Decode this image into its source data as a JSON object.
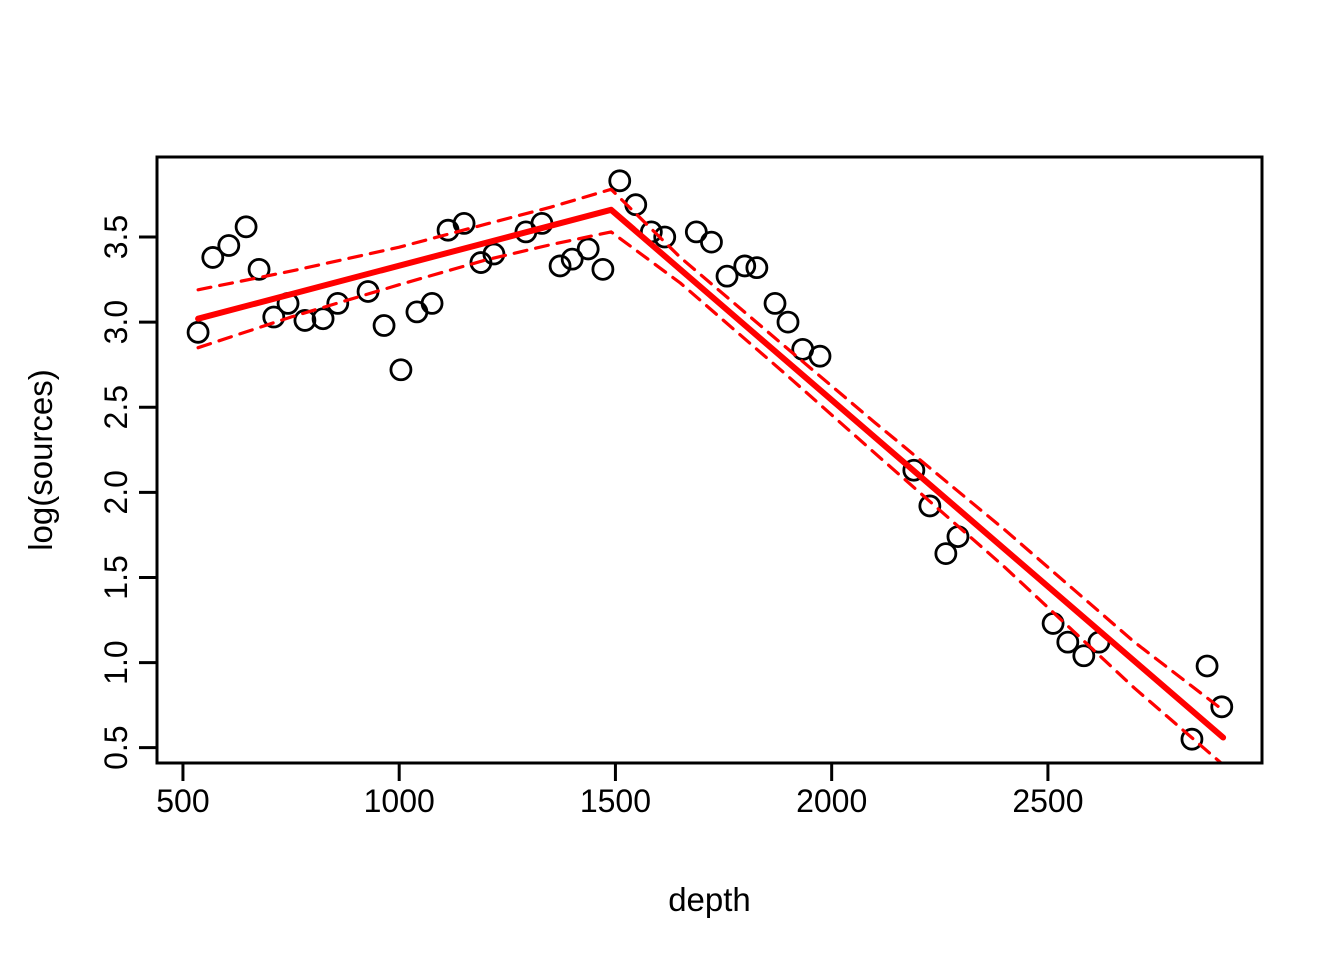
{
  "figure": {
    "background": "#FFFFFF"
  },
  "chart_data": {
    "type": "scatter",
    "title": "",
    "xlabel": "depth",
    "ylabel": "log(sources)",
    "x_ticks": [
      500,
      1000,
      1500,
      2000,
      2500
    ],
    "y_ticks": [
      0.5,
      1.0,
      1.5,
      2.0,
      2.5,
      3.0,
      3.5
    ],
    "y_tick_labels": [
      "0.5",
      "1.0",
      "1.5",
      "2.0",
      "2.5",
      "3.0",
      "3.5"
    ],
    "xlim": [
      440,
      2995
    ],
    "ylim": [
      0.41,
      3.97
    ],
    "grid": false,
    "legend": null,
    "colors": {
      "points": "#000000",
      "fit_line": "#FF0000",
      "confidence_band": "#FF0000",
      "axis": "#000000"
    },
    "point_shape": "open-circle",
    "points": [
      [
        535,
        2.94
      ],
      [
        569,
        3.38
      ],
      [
        606,
        3.45
      ],
      [
        646,
        3.56
      ],
      [
        676,
        3.31
      ],
      [
        710,
        3.03
      ],
      [
        743,
        3.11
      ],
      [
        782,
        3.01
      ],
      [
        824,
        3.02
      ],
      [
        858,
        3.11
      ],
      [
        928,
        3.18
      ],
      [
        965,
        2.98
      ],
      [
        1004,
        2.72
      ],
      [
        1041,
        3.06
      ],
      [
        1076,
        3.11
      ],
      [
        1113,
        3.54
      ],
      [
        1150,
        3.58
      ],
      [
        1189,
        3.35
      ],
      [
        1219,
        3.4
      ],
      [
        1293,
        3.53
      ],
      [
        1330,
        3.58
      ],
      [
        1372,
        3.33
      ],
      [
        1400,
        3.37
      ],
      [
        1437,
        3.43
      ],
      [
        1471,
        3.31
      ],
      [
        1510,
        3.83
      ],
      [
        1547,
        3.69
      ],
      [
        1583,
        3.53
      ],
      [
        1614,
        3.5
      ],
      [
        1687,
        3.53
      ],
      [
        1722,
        3.47
      ],
      [
        1758,
        3.27
      ],
      [
        1799,
        3.33
      ],
      [
        1827,
        3.32
      ],
      [
        1869,
        3.11
      ],
      [
        1899,
        3.0
      ],
      [
        1933,
        2.84
      ],
      [
        1973,
        2.8
      ],
      [
        2190,
        2.13
      ],
      [
        2227,
        1.92
      ],
      [
        2264,
        1.64
      ],
      [
        2292,
        1.74
      ],
      [
        2512,
        1.23
      ],
      [
        2546,
        1.12
      ],
      [
        2583,
        1.04
      ],
      [
        2618,
        1.12
      ],
      [
        2833,
        0.55
      ],
      [
        2868,
        0.98
      ],
      [
        2902,
        0.74
      ]
    ],
    "fit_line": {
      "style": "solid",
      "breakpoint_x": 1490,
      "vertices": [
        [
          535,
          3.02
        ],
        [
          1490,
          3.66
        ],
        [
          2905,
          0.56
        ]
      ]
    },
    "confidence_bands": {
      "style": "dashed",
      "upper": [
        [
          535,
          3.19
        ],
        [
          750,
          3.3
        ],
        [
          1000,
          3.44
        ],
        [
          1200,
          3.575
        ],
        [
          1350,
          3.675
        ],
        [
          1490,
          3.78
        ],
        [
          1650,
          3.38
        ],
        [
          1900,
          2.84
        ],
        [
          2100,
          2.41
        ],
        [
          2400,
          1.78
        ],
        [
          2700,
          1.12
        ],
        [
          2905,
          0.72
        ]
      ],
      "lower": [
        [
          535,
          2.85
        ],
        [
          750,
          3.03
        ],
        [
          1000,
          3.22
        ],
        [
          1200,
          3.365
        ],
        [
          1350,
          3.455
        ],
        [
          1490,
          3.53
        ],
        [
          1650,
          3.23
        ],
        [
          1900,
          2.68
        ],
        [
          2100,
          2.23
        ],
        [
          2400,
          1.56
        ],
        [
          2700,
          0.85
        ],
        [
          2905,
          0.4
        ]
      ]
    }
  }
}
